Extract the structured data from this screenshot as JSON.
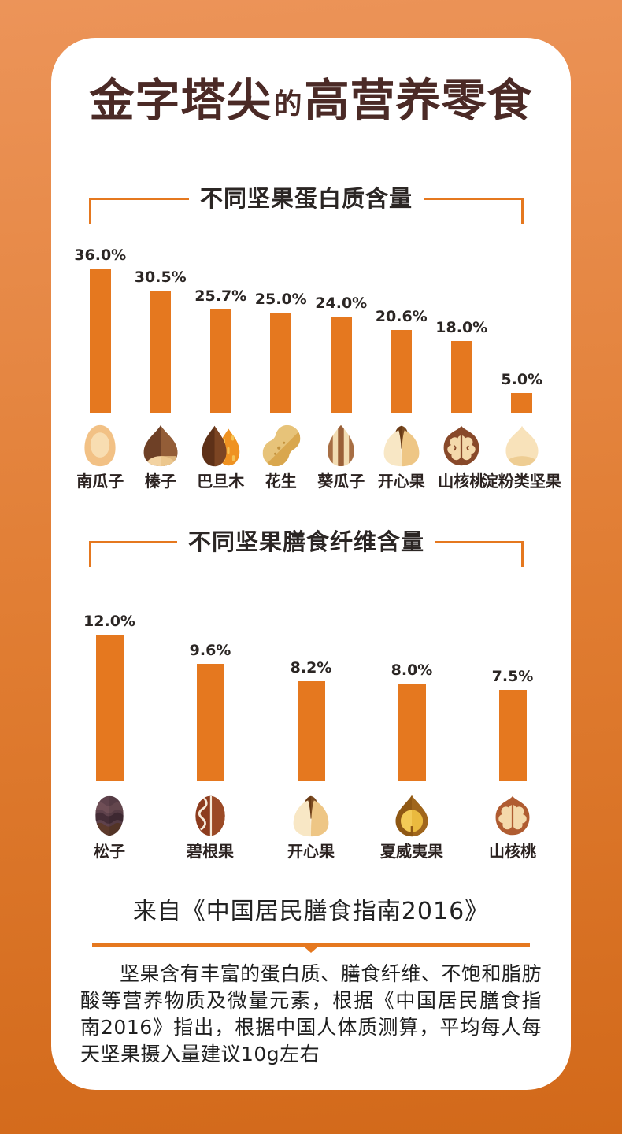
{
  "page": {
    "title_parts": [
      "金字塔尖",
      "的",
      "高营养零食"
    ]
  },
  "colors": {
    "background_top": "#ec9459",
    "background_bottom": "#d2691a",
    "card_background": "#ffffff",
    "accent_orange": "#e5781f",
    "title_brown": "#4b2a26",
    "text_dark": "#2b2624"
  },
  "chart_data": [
    {
      "type": "bar",
      "title": "不同坚果蛋白质含量",
      "unit": "%",
      "categories": [
        "南瓜子",
        "榛子",
        "巴旦木",
        "花生",
        "葵瓜子",
        "开心果",
        "山核桃",
        "淀粉类坚果"
      ],
      "values": [
        36.0,
        30.5,
        25.7,
        25.0,
        24.0,
        20.6,
        18.0,
        5.0
      ],
      "value_labels": [
        "36.0%",
        "30.5%",
        "25.7%",
        "25.0%",
        "24.0%",
        "20.6%",
        "18.0%",
        "5.0%"
      ],
      "icons": [
        "pumpkin-seed",
        "hazelnut",
        "almond",
        "peanut",
        "sunflower-seed",
        "pistachio",
        "walnut",
        "chestnut"
      ],
      "bar_color": "#e5781f",
      "ylim": [
        0,
        38
      ],
      "grid": false,
      "legend": "none"
    },
    {
      "type": "bar",
      "title": "不同坚果膳食纤维含量",
      "unit": "%",
      "categories": [
        "松子",
        "碧根果",
        "开心果",
        "夏威夷果",
        "山核桃"
      ],
      "values": [
        12.0,
        9.6,
        8.2,
        8.0,
        7.5
      ],
      "value_labels": [
        "12.0%",
        "9.6%",
        "8.2%",
        "8.0%",
        "7.5%"
      ],
      "icons": [
        "pine-nut",
        "pecan",
        "pistachio",
        "macadamia",
        "pecan-walnut"
      ],
      "bar_color": "#e5781f",
      "ylim": [
        0,
        13
      ],
      "grid": false,
      "legend": "none"
    }
  ],
  "source": {
    "label": "来自《中国居民膳食指南2016》"
  },
  "footnote": {
    "text": "坚果含有丰富的蛋白质、膳食纤维、不饱和脂肪酸等营养物质及微量元素，根据《中国居民膳食指南2016》指出，根据中国人体质测算，平均每人每天坚果摄入量建议10g左右"
  }
}
